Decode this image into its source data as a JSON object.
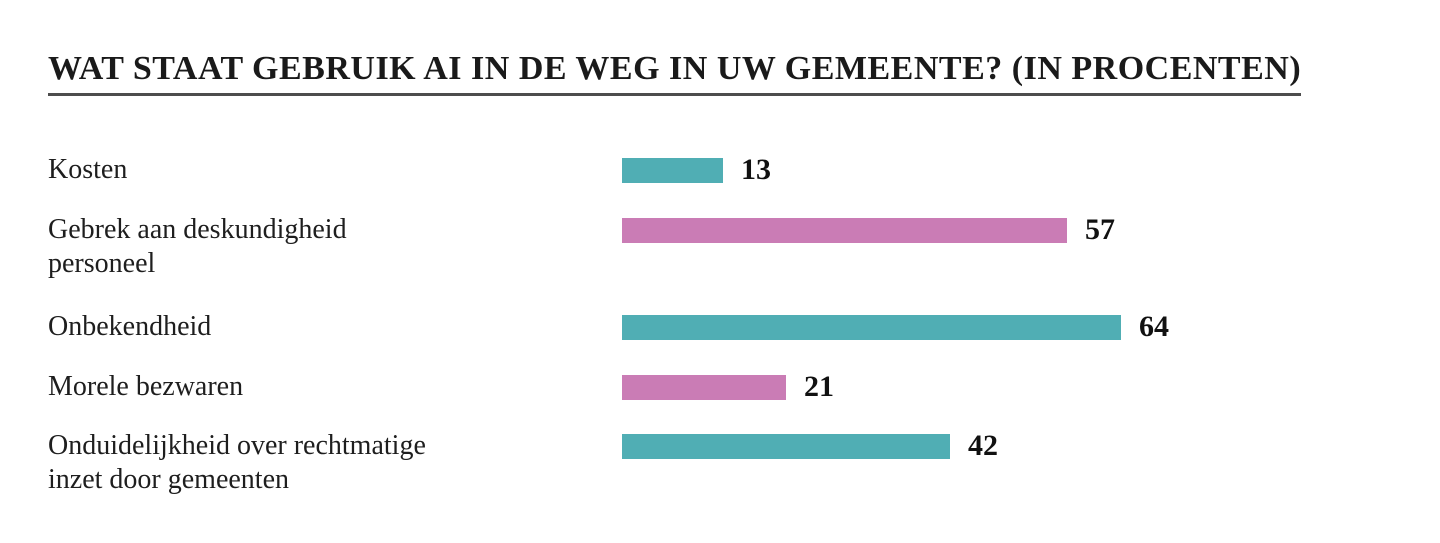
{
  "chart_data": {
    "type": "bar",
    "orientation": "horizontal",
    "title": "WAT STAAT GEBRUIK AI IN DE WEG IN UW GEMEENTE? (IN PROCENTEN)",
    "categories": [
      "Kosten",
      "Gebrek aan deskundigheid personeel",
      "Onbekendheid",
      "Morele bezwaren",
      "Onduidelijkheid over rechtmatige inzet door gemeenten"
    ],
    "category_display_lines": [
      [
        "Kosten"
      ],
      [
        "Gebrek aan deskundigheid",
        "personeel"
      ],
      [
        "Onbekendheid"
      ],
      [
        "Morele bezwaren"
      ],
      [
        "Onduidelijkheid over rechtmatige",
        "inzet door gemeenten"
      ]
    ],
    "values": [
      13,
      57,
      64,
      21,
      42
    ],
    "value_labels": [
      "13",
      "57",
      "64",
      "21",
      "42"
    ],
    "series_colors": [
      "#50AEB4",
      "#CA7CB5",
      "#50AEB4",
      "#CA7CB5",
      "#50AEB4"
    ],
    "xlim": [
      0,
      64
    ],
    "grid": false,
    "legend": false,
    "axis_ticks": false,
    "value_label_position": "right-of-bar"
  },
  "colors": {
    "teal": "#50AEB4",
    "pink": "#CA7CB5",
    "label_text": "#1E1E1E",
    "value_text": "#111111",
    "title_text": "#1A1A1A",
    "title_underline": "#4D4D4D",
    "background": "#FFFFFF"
  }
}
